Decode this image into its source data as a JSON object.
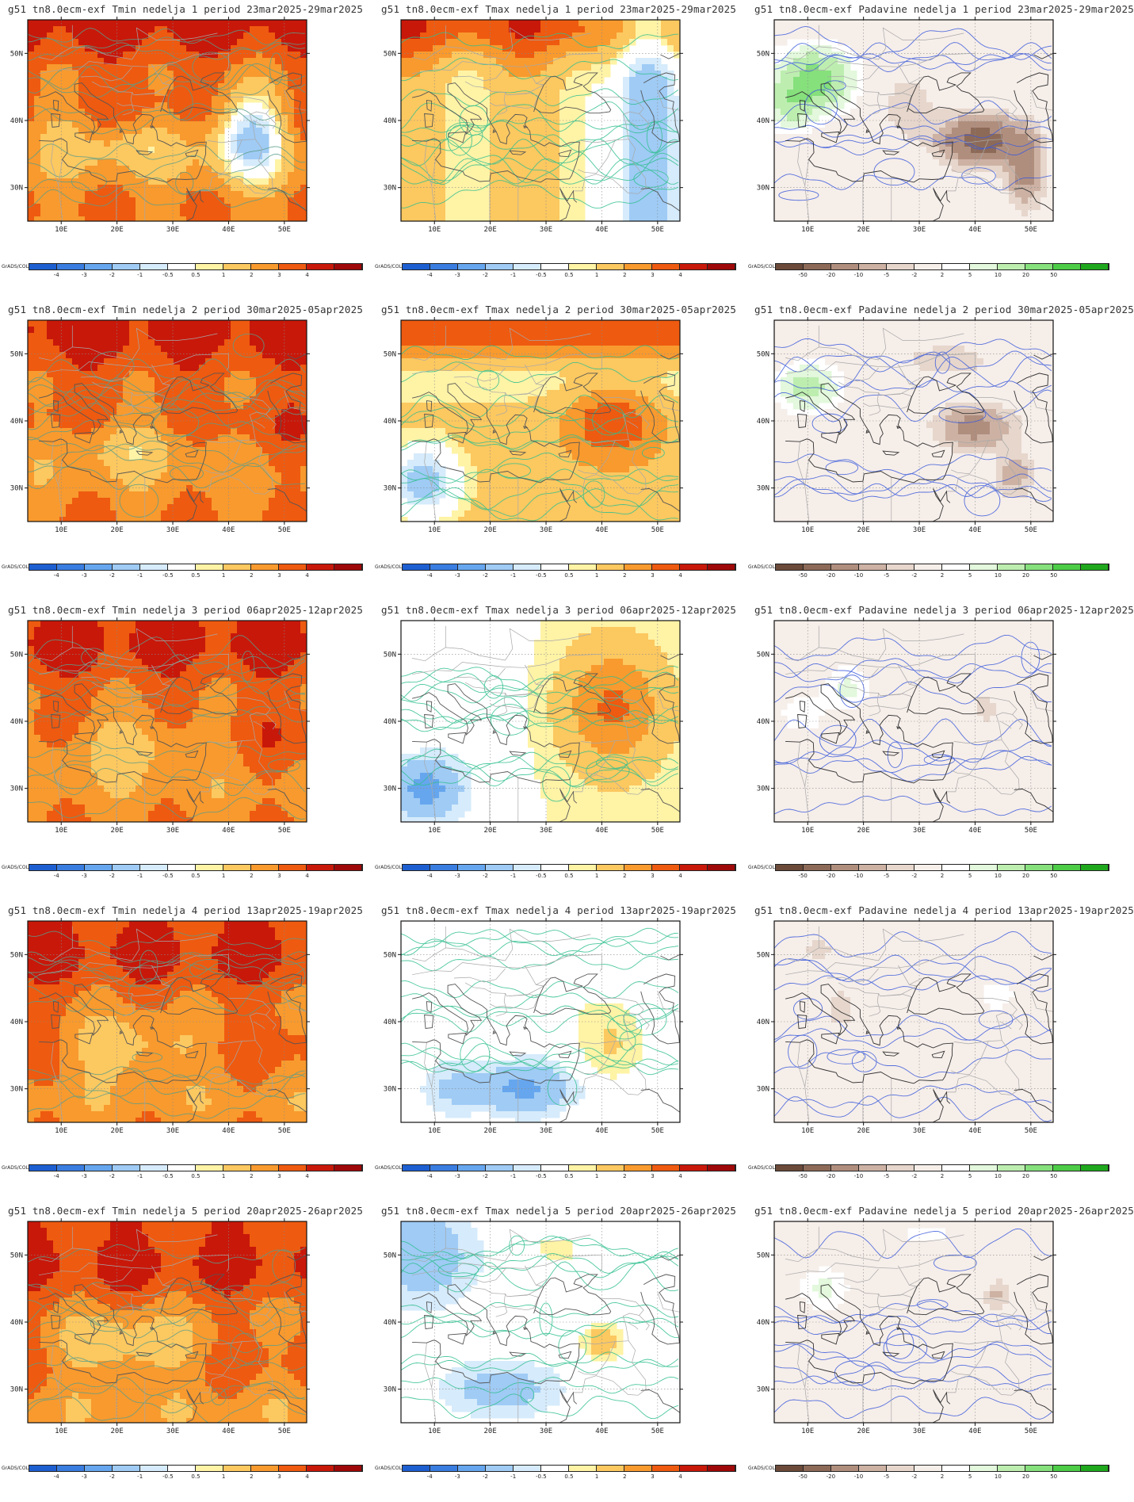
{
  "credit": "GrADS/COLA",
  "lat_labels": [
    "50N",
    "40N",
    "30N"
  ],
  "lon_labels": [
    "10E",
    "20E",
    "30E",
    "40E",
    "50E"
  ],
  "colorbars": {
    "temp": {
      "labels": [
        "-4",
        "-3",
        "-2",
        "-1",
        "-0.5",
        "0.5",
        "1",
        "2",
        "3",
        "4"
      ],
      "colors": [
        "#1d5fd1",
        "#3a7de0",
        "#66a6ee",
        "#9fcbf5",
        "#d6ebfb",
        "#ffffff",
        "#fff3a6",
        "#fcc860",
        "#f89a2e",
        "#ee5a10",
        "#c8180a",
        "#9e0808"
      ]
    },
    "precip": {
      "labels": [
        "-50",
        "-20",
        "-10",
        "-5",
        "-2",
        "2",
        "5",
        "10",
        "20",
        "50"
      ],
      "colors": [
        "#6b4a3a",
        "#8d6a58",
        "#b08e7e",
        "#cdb2a4",
        "#e6d6cc",
        "#f6eee9",
        "#ffffff",
        "#e3f8dc",
        "#bdeeb0",
        "#86e07c",
        "#4ccc47",
        "#1fa81d"
      ]
    }
  },
  "panels": [
    {
      "title": "g51  tn8.0ecm-exf  Tmin  nedelja  1  period  23mar2025-29mar2025",
      "var": "Tmin",
      "week": 1
    },
    {
      "title": "g51  tn8.0ecm-exf  Tmax  nedelja  1  period  23mar2025-29mar2025",
      "var": "Tmax",
      "week": 1
    },
    {
      "title": "g51  tn8.0ecm-exf  Padavine  nedelja  1  period  23mar2025-29mar2025",
      "var": "Padavine",
      "week": 1
    },
    {
      "title": "g51  tn8.0ecm-exf  Tmin  nedelja  2  period  30mar2025-05apr2025",
      "var": "Tmin",
      "week": 2
    },
    {
      "title": "g51  tn8.0ecm-exf  Tmax  nedelja  2  period  30mar2025-05apr2025",
      "var": "Tmax",
      "week": 2
    },
    {
      "title": "g51  tn8.0ecm-exf  Padavine  nedelja  2  period  30mar2025-05apr2025",
      "var": "Padavine",
      "week": 2
    },
    {
      "title": "g51  tn8.0ecm-exf  Tmin  nedelja  3  period  06apr2025-12apr2025",
      "var": "Tmin",
      "week": 3
    },
    {
      "title": "g51  tn8.0ecm-exf  Tmax  nedelja  3  period  06apr2025-12apr2025",
      "var": "Tmax",
      "week": 3
    },
    {
      "title": "g51  tn8.0ecm-exf  Padavine  nedelja  3  period  06apr2025-12apr2025",
      "var": "Padavine",
      "week": 3
    },
    {
      "title": "g51  tn8.0ecm-exf  Tmin  nedelja  4  period  13apr2025-19apr2025",
      "var": "Tmin",
      "week": 4
    },
    {
      "title": "g51  tn8.0ecm-exf  Tmax  nedelja  4  period  13apr2025-19apr2025",
      "var": "Tmax",
      "week": 4
    },
    {
      "title": "g51  tn8.0ecm-exf  Padavine  nedelja  4  period  13apr2025-19apr2025",
      "var": "Padavine",
      "week": 4
    },
    {
      "title": "g51  tn8.0ecm-exf  Tmin  nedelja  5  period  20apr2025-26apr2025",
      "var": "Tmin",
      "week": 5
    },
    {
      "title": "g51  tn8.0ecm-exf  Tmax  nedelja  5  period  20apr2025-26apr2025",
      "var": "Tmax",
      "week": 5
    },
    {
      "title": "g51  tn8.0ecm-exf  Padavine  nedelja  5  period  20apr2025-26apr2025",
      "var": "Padavine",
      "week": 5
    }
  ]
}
